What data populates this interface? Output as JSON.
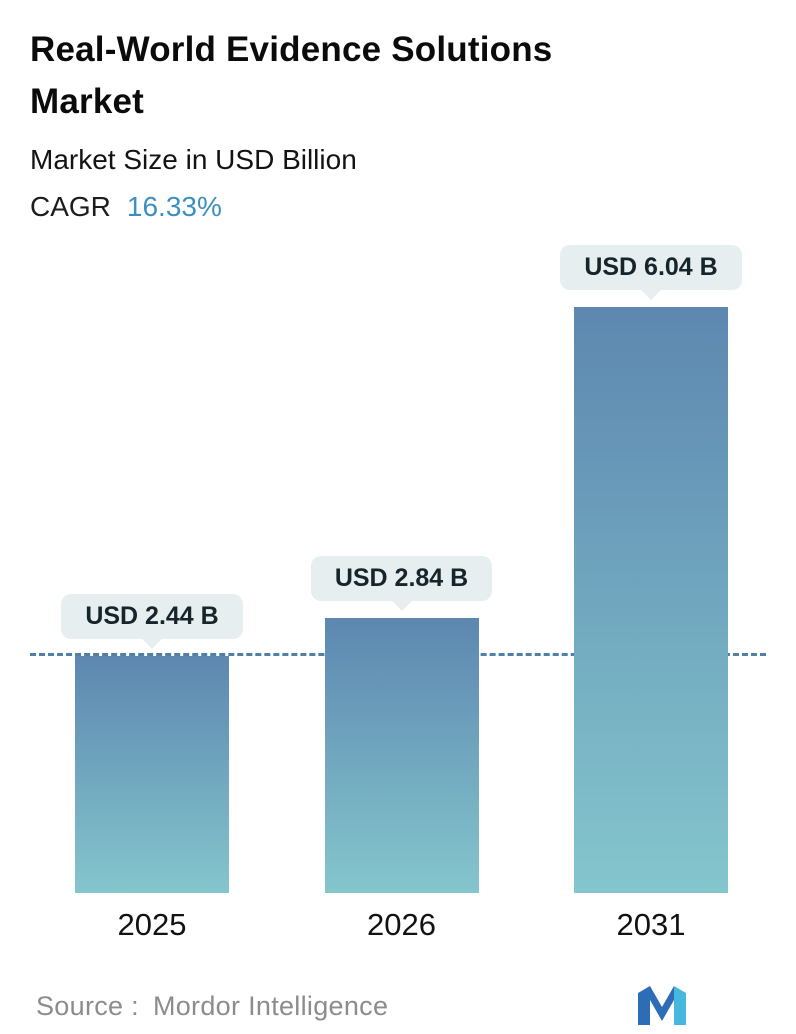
{
  "header": {
    "title": "Real-World Evidence Solutions Market",
    "subtitle": "Market Size in USD Billion",
    "cagr_label": "CAGR",
    "cagr_value": "16.33%"
  },
  "chart_data": {
    "type": "bar",
    "title": "Real-World Evidence Solutions Market",
    "subtitle": "Market Size in USD Billion",
    "cagr_percent": 16.33,
    "unit": "USD Billion",
    "categories": [
      "2025",
      "2026",
      "2031"
    ],
    "values": [
      2.44,
      2.84,
      6.04
    ],
    "value_labels": [
      "USD 2.44 B",
      "USD 2.84 B",
      "USD 6.04 B"
    ],
    "baseline_marker": "dashed line at level of 2025 bar top",
    "legend": "none",
    "grid": "off",
    "bar_gradient_top": "#5d87b0",
    "bar_gradient_bottom": "#84c6cd",
    "label_pill_bg": "#e7eef0",
    "dashed_line_color": "#4f81a8"
  },
  "colors": {
    "cagr_accent": "#3d8fbf",
    "background": "#ffffff"
  },
  "footer": {
    "source_label": "Source :",
    "source_value": "Mordor Intelligence",
    "logo": "mordor-intelligence-logo"
  }
}
